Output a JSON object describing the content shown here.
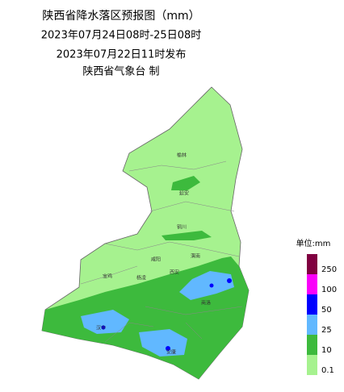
{
  "header": {
    "title": "陕西省降水落区预报图（mm）",
    "period": "2023年07月24日08时-25日08时",
    "issued": "2023年07月22日11时发布",
    "issuer": "陕西省气象台 制"
  },
  "cities": [
    "榆林",
    "延安",
    "铜川",
    "咸阳",
    "渭南",
    "宝鸡",
    "杨凌",
    "西安",
    "商洛",
    "汉中",
    "安康"
  ],
  "legend": {
    "title": "单位:mm",
    "levels": [
      0.1,
      10,
      25,
      50,
      100,
      250
    ],
    "colors": [
      "#a6f28f",
      "#3dba3d",
      "#61b8ff",
      "#0000ff",
      "#fa00fa",
      "#800040"
    ]
  }
}
